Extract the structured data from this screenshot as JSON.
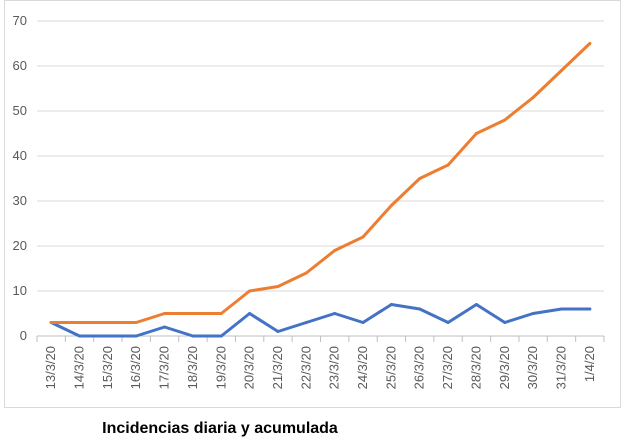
{
  "caption": "Incidencias diaria y acumulada",
  "chart_data": {
    "type": "line",
    "title": "",
    "xlabel": "",
    "ylabel": "",
    "categories": [
      "13/3/20",
      "14/3/20",
      "15/3/20",
      "16/3/20",
      "17/3/20",
      "18/3/20",
      "19/3/20",
      "20/3/20",
      "21/3/20",
      "22/3/20",
      "23/3/20",
      "24/3/20",
      "25/3/20",
      "26/3/20",
      "27/3/20",
      "28/3/20",
      "29/3/20",
      "30/3/20",
      "31/3/20",
      "1/4/20"
    ],
    "series": [
      {
        "color": "#4472c4",
        "values": [
          3,
          0,
          0,
          0,
          2,
          0,
          0,
          5,
          1,
          3,
          5,
          3,
          7,
          6,
          3,
          7,
          3,
          5,
          6,
          6
        ]
      },
      {
        "color": "#ed7d31",
        "values": [
          3,
          3,
          3,
          3,
          5,
          5,
          5,
          10,
          11,
          14,
          19,
          22,
          29,
          35,
          38,
          45,
          48,
          53,
          59,
          65
        ]
      }
    ],
    "ylim": [
      0,
      70
    ],
    "yticks": [
      0,
      10,
      20,
      30,
      40,
      50,
      60,
      70
    ],
    "grid": true,
    "legend": "none"
  }
}
